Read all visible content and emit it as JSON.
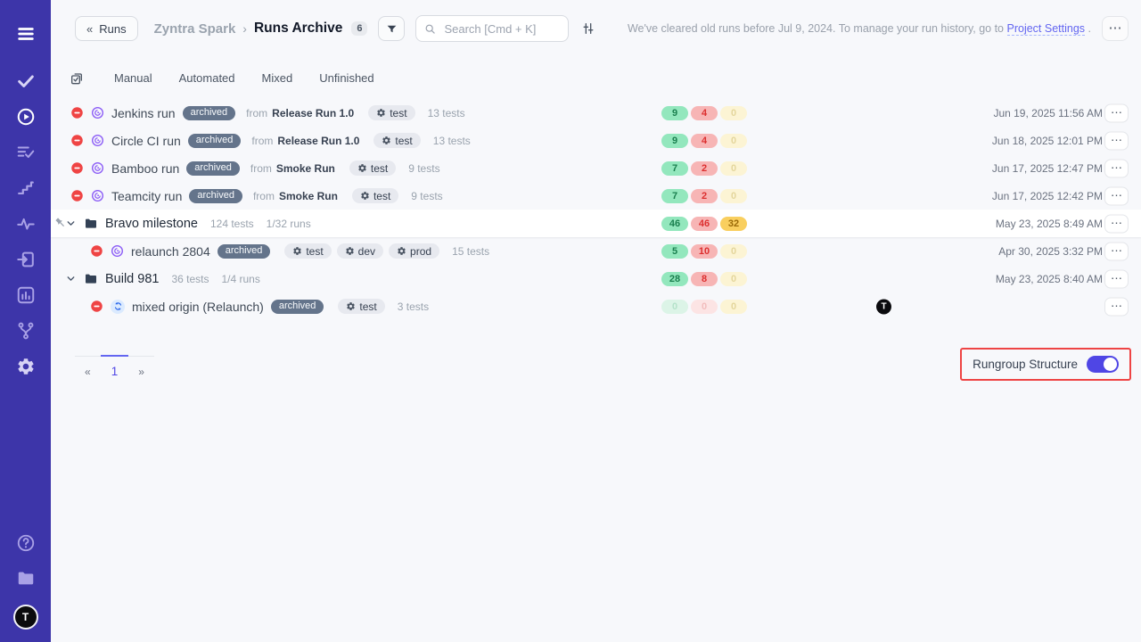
{
  "colors": {
    "sidebar_bg": "#3d35a9",
    "accent": "#4f46e5",
    "highlight_outline": "#ee4444",
    "passed_bg": "#93e7bd",
    "failed_bg": "#f7b5b5",
    "skipped_amber_bg": "#f9cf5f",
    "archived_bg": "#64748b"
  },
  "sidebar": {
    "avatar_letter": "T"
  },
  "header": {
    "back_icon": "«",
    "back_label": "Runs",
    "project": "Zyntra Spark",
    "separator": "›",
    "title": "Runs Archive",
    "count": "6",
    "search_placeholder": "Search [Cmd + K]",
    "notice_text": "We've cleared old runs before Jul 9, 2024. To manage your run history, go to",
    "notice_link": "Project Settings",
    "notice_suffix": " .",
    "more_icon": "⋯"
  },
  "tabs": [
    {
      "label": "Manual"
    },
    {
      "label": "Automated"
    },
    {
      "label": "Mixed"
    },
    {
      "label": "Unfinished"
    }
  ],
  "rows": [
    {
      "kind": "run",
      "name": "Jenkins run",
      "archived": "archived",
      "from_label": "from",
      "source": "Release Run 1.0",
      "tags": [
        "test"
      ],
      "tests_label": "13 tests",
      "counts": [
        {
          "value": "9",
          "variant": "passed"
        },
        {
          "value": "4",
          "variant": "failed"
        },
        {
          "value": "0",
          "variant": "skipped-faded"
        }
      ],
      "date": "Jun 19, 2025 11:56 AM"
    },
    {
      "kind": "run",
      "name": "Circle CI run",
      "archived": "archived",
      "from_label": "from",
      "source": "Release Run 1.0",
      "tags": [
        "test"
      ],
      "tests_label": "13 tests",
      "counts": [
        {
          "value": "9",
          "variant": "passed"
        },
        {
          "value": "4",
          "variant": "failed"
        },
        {
          "value": "0",
          "variant": "skipped-faded"
        }
      ],
      "date": "Jun 18, 2025 12:01 PM"
    },
    {
      "kind": "run",
      "name": "Bamboo run",
      "archived": "archived",
      "from_label": "from",
      "source": "Smoke Run",
      "tags": [
        "test"
      ],
      "tests_label": "9 tests",
      "counts": [
        {
          "value": "7",
          "variant": "passed"
        },
        {
          "value": "2",
          "variant": "failed"
        },
        {
          "value": "0",
          "variant": "skipped-faded"
        }
      ],
      "date": "Jun 17, 2025 12:47 PM"
    },
    {
      "kind": "run",
      "name": "Teamcity run",
      "archived": "archived",
      "from_label": "from",
      "source": "Smoke Run",
      "tags": [
        "test"
      ],
      "tests_label": "9 tests",
      "counts": [
        {
          "value": "7",
          "variant": "passed"
        },
        {
          "value": "2",
          "variant": "failed"
        },
        {
          "value": "0",
          "variant": "skipped-faded"
        }
      ],
      "date": "Jun 17, 2025 12:42 PM"
    },
    {
      "kind": "group",
      "pinned": true,
      "highlighted": true,
      "name": "Bravo milestone",
      "tests_label": "124 tests",
      "runs_label": "1/32 runs",
      "counts": [
        {
          "value": "46",
          "variant": "passed"
        },
        {
          "value": "46",
          "variant": "failed"
        },
        {
          "value": "32",
          "variant": "skipped-amber"
        }
      ],
      "date": "May 23, 2025 8:49 AM"
    },
    {
      "kind": "run",
      "indent": 1,
      "name": "relaunch 2804",
      "archived": "archived",
      "tags": [
        "test",
        "dev",
        "prod"
      ],
      "tests_label": "15 tests",
      "counts": [
        {
          "value": "5",
          "variant": "passed"
        },
        {
          "value": "10",
          "variant": "failed"
        },
        {
          "value": "0",
          "variant": "skipped-faded"
        }
      ],
      "date": "Apr 30, 2025 3:32 PM"
    },
    {
      "kind": "group",
      "name": "Build 981",
      "tests_label": "36 tests",
      "runs_label": "1/4 runs",
      "counts": [
        {
          "value": "28",
          "variant": "passed"
        },
        {
          "value": "8",
          "variant": "failed"
        },
        {
          "value": "0",
          "variant": "skipped-faded"
        }
      ],
      "date": "May 23, 2025 8:40 AM"
    },
    {
      "kind": "run",
      "indent": 1,
      "icon": "mixed",
      "name": "mixed origin (Relaunch)",
      "archived": "archived",
      "tags": [
        "test"
      ],
      "tests_label": "3 tests",
      "counts": [
        {
          "value": "0",
          "variant": "passed-faded"
        },
        {
          "value": "0",
          "variant": "failed-faded"
        },
        {
          "value": "0",
          "variant": "skipped-faded"
        }
      ],
      "avatar": "T",
      "date": ""
    }
  ],
  "pagination": {
    "prev": "«",
    "page": "1",
    "next": "»"
  },
  "footer": {
    "toggle_label": "Rungroup Structure",
    "toggle_state": "on"
  }
}
